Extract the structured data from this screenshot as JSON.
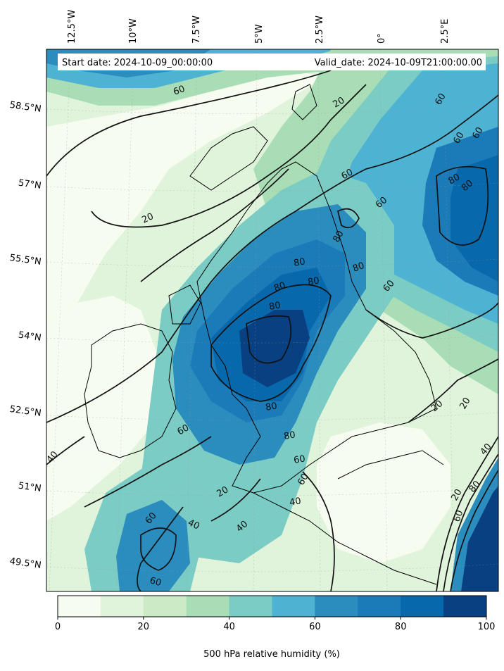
{
  "map": {
    "start_date": "Start date: 2024-10-09_00:00:00",
    "valid_date": "Valid_date: 2024-10-09T21:00:00.00",
    "lon_labels": [
      "12.5°W",
      "10°W",
      "7.5°W",
      "5°W",
      "2.5°W",
      "0°",
      "2.5°E"
    ],
    "lat_labels": [
      "58.5°N",
      "57°N",
      "55.5°N",
      "54°N",
      "52.5°N",
      "51°N",
      "49.5°N"
    ],
    "contour_labels": [
      "60",
      "20",
      "20",
      "60",
      "60",
      "60",
      "60",
      "80",
      "80",
      "80",
      "80",
      "80",
      "80",
      "80",
      "80",
      "60",
      "60",
      "60",
      "80",
      "80",
      "20",
      "20",
      "40",
      "60",
      "60",
      "20",
      "40",
      "60",
      "40",
      "40",
      "20",
      "80",
      "60",
      "40"
    ]
  },
  "colorbar": {
    "label": "500 hPa relative humidity (%)",
    "tick_labels": [
      "0",
      "20",
      "40",
      "60",
      "80",
      "100"
    ],
    "colors": [
      "#f7fcf0",
      "#e0f3db",
      "#ccebc5",
      "#a8ddb5",
      "#7bccc4",
      "#4eb3d3",
      "#2b8cbe",
      "#1b7ab8",
      "#0868ac",
      "#084081"
    ]
  }
}
